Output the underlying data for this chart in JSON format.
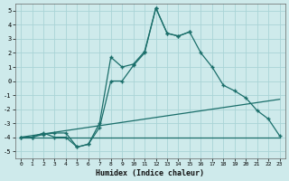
{
  "xlabel": "Humidex (Indice chaleur)",
  "background_color": "#ceeaeb",
  "grid_color": "#aad4d6",
  "line_color": "#1a6e6a",
  "xlim": [
    -0.5,
    23.5
  ],
  "ylim": [
    -5.5,
    5.5
  ],
  "xticks": [
    0,
    1,
    2,
    3,
    4,
    5,
    6,
    7,
    8,
    9,
    10,
    11,
    12,
    13,
    14,
    15,
    16,
    17,
    18,
    19,
    20,
    21,
    22,
    23
  ],
  "yticks": [
    -5,
    -4,
    -3,
    -2,
    -1,
    0,
    1,
    2,
    3,
    4,
    5
  ],
  "line1_x": [
    0,
    1,
    2,
    3,
    4,
    5,
    6,
    7,
    8,
    9,
    10,
    11,
    12,
    13,
    14,
    15,
    16,
    17,
    18,
    19,
    20,
    21,
    22,
    23
  ],
  "line1_y": [
    -4.0,
    -4.0,
    -3.7,
    -4.0,
    -4.0,
    -4.7,
    -4.5,
    -3.3,
    0.0,
    0.0,
    1.1,
    2.0,
    5.2,
    3.4,
    3.2,
    3.5,
    2.0,
    1.0,
    -0.3,
    -0.7,
    -1.2,
    -2.1,
    -2.7,
    -3.9
  ],
  "line2_x": [
    0,
    1,
    2,
    3,
    4,
    5,
    6,
    7,
    8,
    9,
    10,
    11,
    12,
    13,
    14,
    15
  ],
  "line2_y": [
    -4.0,
    -4.0,
    -3.8,
    -3.7,
    -3.7,
    -4.7,
    -4.5,
    -3.0,
    1.7,
    1.0,
    1.2,
    2.1,
    5.2,
    3.4,
    3.2,
    3.5
  ],
  "line3_x": [
    0,
    23
  ],
  "line3_y": [
    -4.0,
    -4.0
  ],
  "line4_x": [
    0,
    23
  ],
  "line4_y": [
    -4.0,
    -1.3
  ]
}
